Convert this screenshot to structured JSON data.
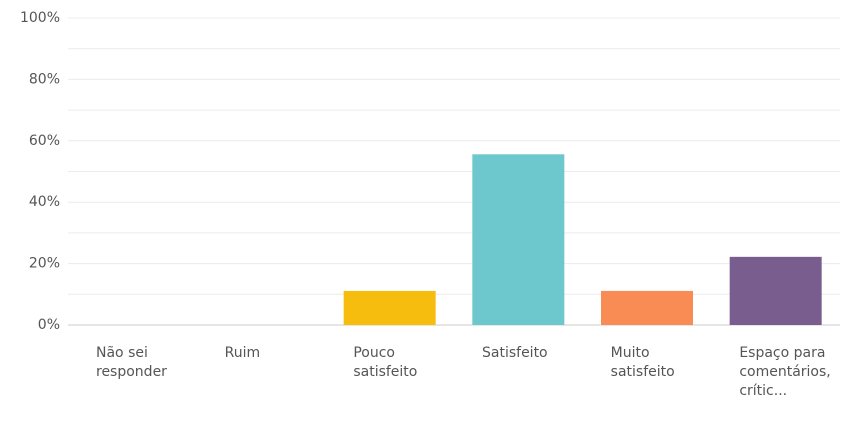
{
  "chart_data": {
    "type": "bar",
    "categories": [
      "Não sei responder",
      "Ruim",
      "Pouco satisfeito",
      "Satisfeito",
      "Muito satisfeito",
      "Espaço para comentários, crític..."
    ],
    "values": [
      0,
      0,
      11.1,
      55.6,
      11.1,
      22.2
    ],
    "colors": [
      "#6cc8cc",
      "#6cc8cc",
      "#f6bd0f",
      "#6cc8cc",
      "#f98b55",
      "#7a5d8f"
    ],
    "ylim": [
      0,
      100
    ],
    "yticks": [
      {
        "value": 0,
        "label": "0%"
      },
      {
        "value": 20,
        "label": "20%"
      },
      {
        "value": 40,
        "label": "40%"
      },
      {
        "value": 60,
        "label": "60%"
      },
      {
        "value": 80,
        "label": "80%"
      },
      {
        "value": 100,
        "label": "100%"
      }
    ],
    "minor_yticks": [
      10,
      30,
      50,
      70,
      90
    ],
    "grid": true
  }
}
